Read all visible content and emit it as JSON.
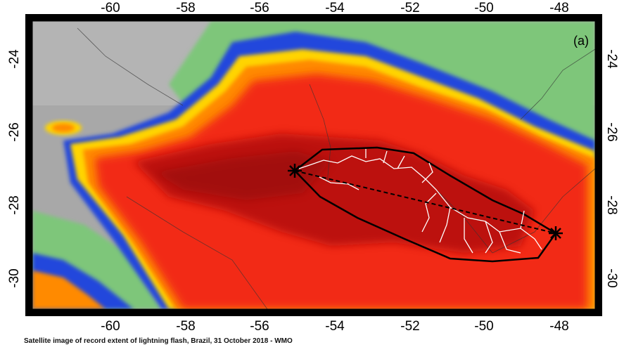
{
  "figure": {
    "panel_label": "(a)",
    "caption": "Satellite image of record extent of lightning flash, Brazil, 31 October 2018 - WMO",
    "top_x_ticks": [
      "-60",
      "-58",
      "-56",
      "-54",
      "-52",
      "-50",
      "-48"
    ],
    "bottom_x_ticks": [
      "-60",
      "-58",
      "-56",
      "-54",
      "-52",
      "-50",
      "-48"
    ],
    "left_y_ticks": [
      "-24",
      "-26",
      "-28",
      "-30"
    ],
    "right_y_ticks": [
      "-24",
      "-26",
      "-28",
      "-30"
    ]
  },
  "flash": {
    "start_point": {
      "lon": -55.1,
      "lat": -27.2
    },
    "end_point": {
      "lon": -48.0,
      "lat": -29.0
    },
    "envelope_color": "#000000",
    "channel_color": "#ffffff"
  },
  "colors": {
    "warm_cloud_gray": "#a6a6a6",
    "green": "#7cc47c",
    "blue": "#1f3bd8",
    "yellow": "#ffd400",
    "orange": "#ff8a00",
    "red": "#f22a12",
    "dark_red": "#b10d0d"
  }
}
